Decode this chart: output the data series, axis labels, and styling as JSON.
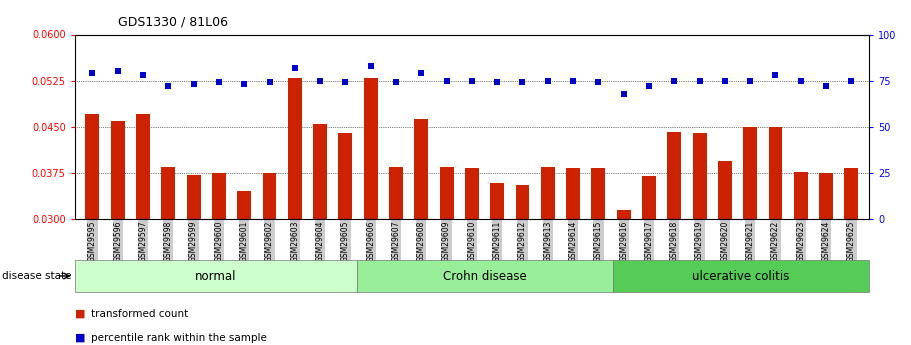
{
  "title": "GDS1330 / 81L06",
  "samples": [
    "GSM29595",
    "GSM29596",
    "GSM29597",
    "GSM29598",
    "GSM29599",
    "GSM29600",
    "GSM29601",
    "GSM29602",
    "GSM29603",
    "GSM29604",
    "GSM29605",
    "GSM29606",
    "GSM29607",
    "GSM29608",
    "GSM29609",
    "GSM29610",
    "GSM29611",
    "GSM29612",
    "GSM29613",
    "GSM29614",
    "GSM29615",
    "GSM29616",
    "GSM29617",
    "GSM29618",
    "GSM29619",
    "GSM29620",
    "GSM29621",
    "GSM29622",
    "GSM29623",
    "GSM29624",
    "GSM29625"
  ],
  "bar_values": [
    0.047,
    0.046,
    0.047,
    0.0385,
    0.0372,
    0.0375,
    0.0345,
    0.0375,
    0.053,
    0.0455,
    0.044,
    0.053,
    0.0385,
    0.0463,
    0.0385,
    0.0383,
    0.0358,
    0.0356,
    0.0385,
    0.0383,
    0.0383,
    0.0315,
    0.037,
    0.0442,
    0.044,
    0.0395,
    0.045,
    0.045,
    0.0377,
    0.0375,
    0.0383
  ],
  "blue_values": [
    79,
    80,
    78,
    72,
    73,
    74,
    73,
    74,
    82,
    75,
    74,
    83,
    74,
    79,
    75,
    75,
    74,
    74,
    75,
    75,
    74,
    68,
    72,
    75,
    75,
    75,
    75,
    78,
    75,
    72,
    75
  ],
  "groups": [
    {
      "label": "normal",
      "start": 0,
      "end": 11,
      "color": "#ccffcc"
    },
    {
      "label": "Crohn disease",
      "start": 11,
      "end": 21,
      "color": "#99ee99"
    },
    {
      "label": "ulcerative colitis",
      "start": 21,
      "end": 31,
      "color": "#55cc55"
    }
  ],
  "ylim_left": [
    0.03,
    0.06
  ],
  "bar_baseline": 0.03,
  "ylim_right": [
    0,
    100
  ],
  "yticks_left": [
    0.03,
    0.0375,
    0.045,
    0.0525,
    0.06
  ],
  "yticks_right": [
    0,
    25,
    50,
    75,
    100
  ],
  "bar_color": "#cc2200",
  "blue_color": "#0000cc",
  "bg_color": "#ffffff",
  "disease_label": "disease state",
  "legend_bar": "transformed count",
  "legend_blue": "percentile rank within the sample",
  "tick_label_bg": "#cccccc"
}
